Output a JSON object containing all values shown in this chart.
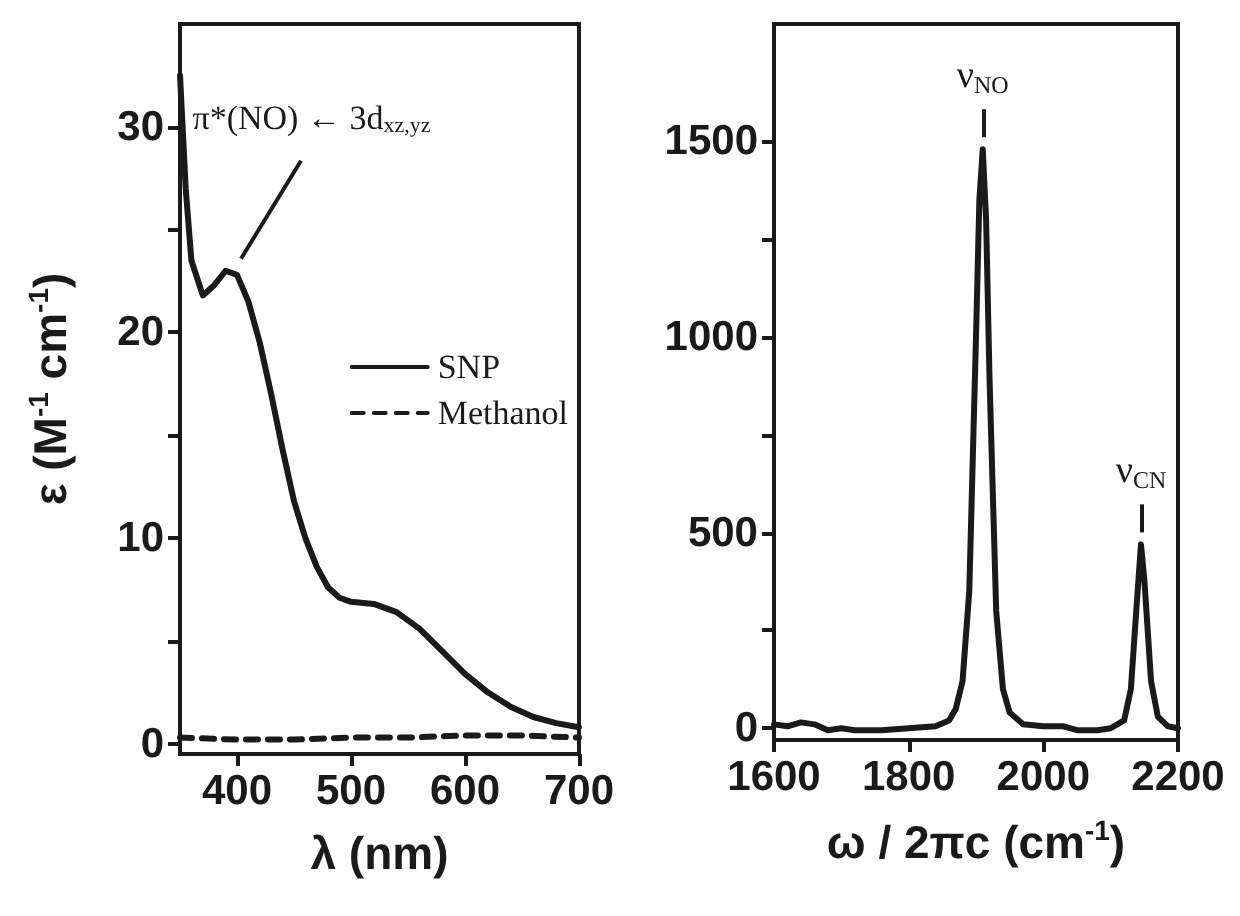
{
  "chart_data": [
    {
      "type": "line",
      "xlabel": "λ (nm)",
      "ylabel": "ε (M$^{-1}$ cm$^{-1}$)",
      "xlim": [
        350,
        700
      ],
      "ylim": [
        -0.5,
        35
      ],
      "xticks": [
        400,
        500,
        600,
        700
      ],
      "yticks": [
        0,
        {
          "value": 5,
          "label": null
        },
        10,
        {
          "value": 15,
          "label": null
        },
        20,
        {
          "value": 25,
          "label": null
        },
        30
      ],
      "grid": false,
      "legend": "right",
      "marker": "none",
      "series": [
        {
          "name": "SNP",
          "color": "#1a1a1a",
          "line_style": "solid",
          "x": [
            350,
            355,
            360,
            370,
            380,
            390,
            400,
            410,
            420,
            430,
            440,
            450,
            460,
            470,
            480,
            490,
            500,
            520,
            540,
            560,
            580,
            600,
            620,
            640,
            660,
            680,
            700
          ],
          "values": [
            32.5,
            27,
            23.5,
            21.8,
            22.3,
            23,
            22.8,
            21.5,
            19.5,
            17,
            14.3,
            11.8,
            10,
            8.6,
            7.6,
            7.1,
            6.9,
            6.8,
            6.4,
            5.6,
            4.5,
            3.4,
            2.5,
            1.8,
            1.3,
            1.0,
            0.8
          ]
        },
        {
          "name": "Methanol",
          "color": "#1a1a1a",
          "line_style": "dashed",
          "x": [
            350,
            400,
            450,
            500,
            550,
            600,
            650,
            700
          ],
          "values": [
            0.3,
            0.2,
            0.2,
            0.3,
            0.3,
            0.4,
            0.4,
            0.3
          ]
        }
      ],
      "annotations": [
        {
          "text": "π*(NO) ← 3d$_{xz,yz}$",
          "x": 400,
          "y": 23
        }
      ]
    },
    {
      "type": "line",
      "xlabel": "ω / 2πc (cm$^{-1}$)",
      "xlim": [
        1600,
        2200
      ],
      "ylim": [
        -30,
        1800
      ],
      "xticks": [
        1600,
        1800,
        2000,
        2200
      ],
      "yticks": [
        0,
        {
          "value": 250,
          "label": null
        },
        500,
        {
          "value": 750,
          "label": null
        },
        1000,
        {
          "value": 1250,
          "label": null
        },
        1500
      ],
      "grid": false,
      "legend": false,
      "marker": "none",
      "series": [
        {
          "color": "#1a1a1a",
          "line_style": "solid",
          "x": [
            1600,
            1620,
            1640,
            1660,
            1680,
            1700,
            1720,
            1760,
            1800,
            1840,
            1860,
            1870,
            1880,
            1890,
            1900,
            1905,
            1910,
            1915,
            1920,
            1930,
            1940,
            1950,
            1970,
            2000,
            2030,
            2050,
            2080,
            2100,
            2120,
            2130,
            2138,
            2145,
            2150,
            2160,
            2170,
            2185,
            2200
          ],
          "values": [
            10,
            5,
            15,
            10,
            -5,
            0,
            -5,
            -5,
            0,
            5,
            20,
            50,
            120,
            350,
            1000,
            1350,
            1480,
            1300,
            900,
            300,
            100,
            40,
            10,
            5,
            5,
            -5,
            -5,
            0,
            20,
            100,
            300,
            470,
            380,
            120,
            30,
            5,
            0
          ]
        }
      ],
      "annotations": [
        {
          "text": "ν$_{NO}$",
          "x": 1910,
          "y": 1480
        },
        {
          "text": "ν$_{CN}$",
          "x": 2145,
          "y": 470
        }
      ]
    }
  ]
}
